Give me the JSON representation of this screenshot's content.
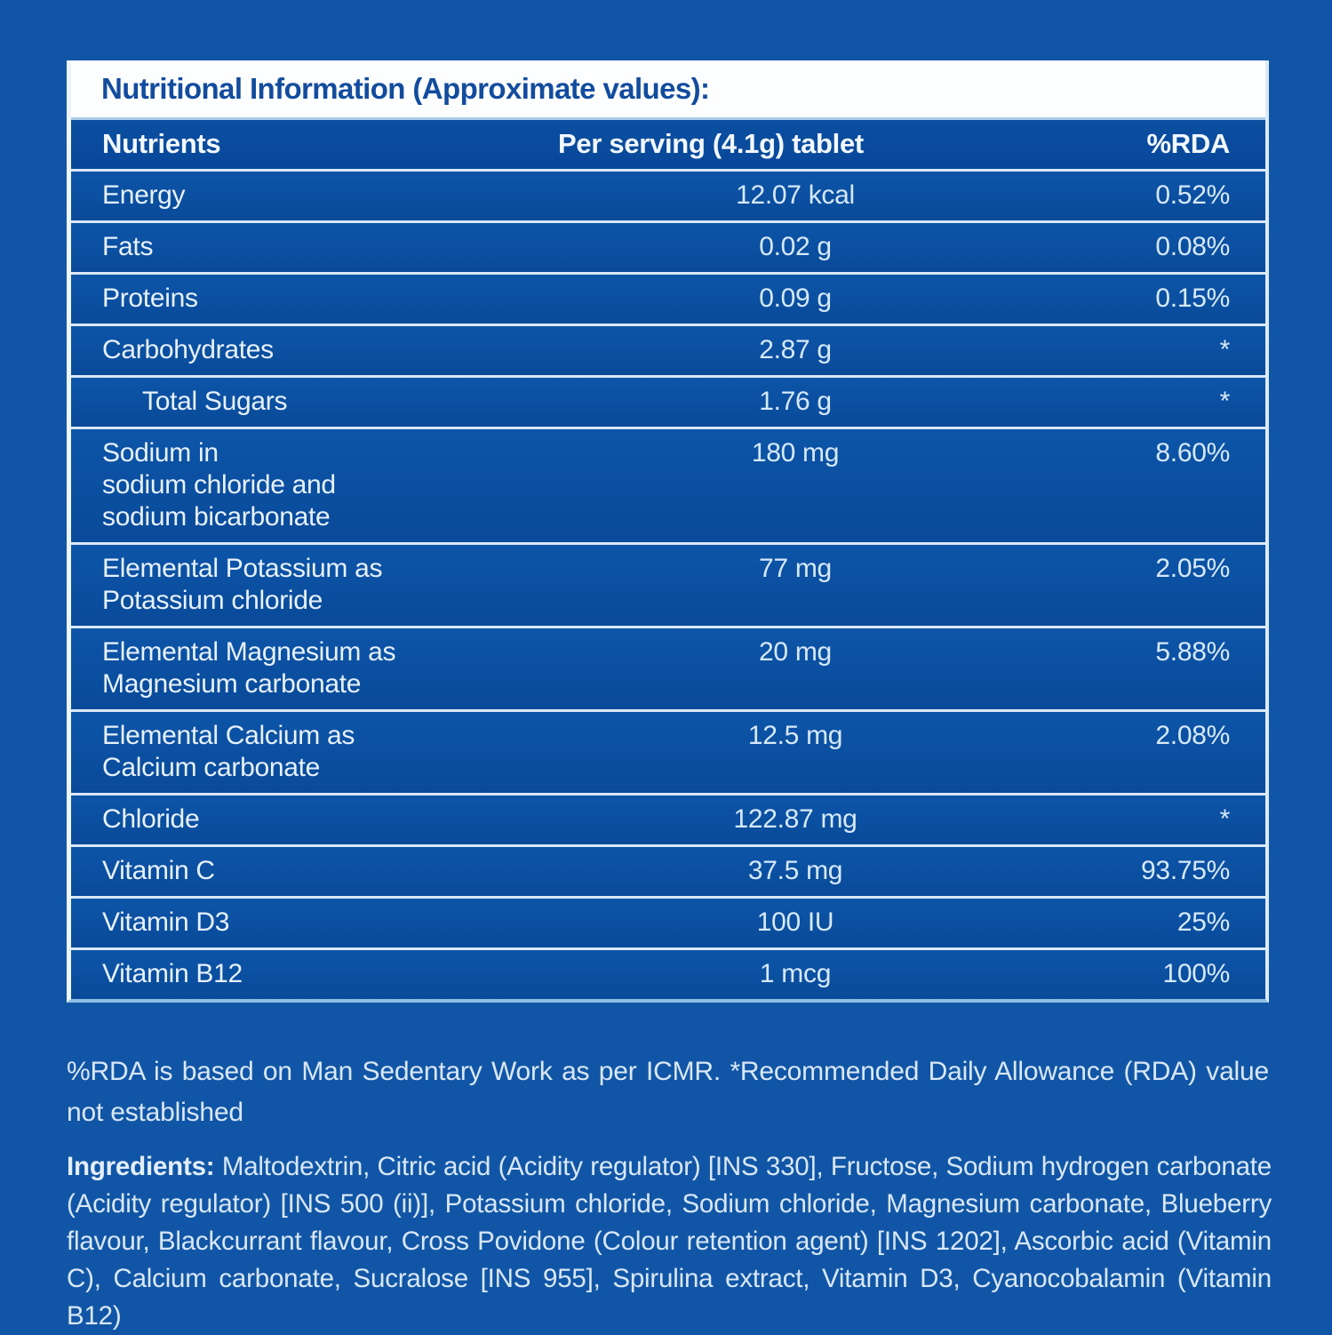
{
  "header": {
    "title": "Nutritional Information (Approximate values):"
  },
  "table": {
    "columns": [
      "Nutrients",
      "Per serving (4.1g) tablet",
      "%RDA"
    ],
    "rows": [
      {
        "nutrient": "Energy",
        "value": "12.07 kcal",
        "rda": "0.52%",
        "indent": false
      },
      {
        "nutrient": "Fats",
        "value": "0.02 g",
        "rda": "0.08%",
        "indent": false
      },
      {
        "nutrient": "Proteins",
        "value": "0.09 g",
        "rda": "0.15%",
        "indent": false
      },
      {
        "nutrient": "Carbohydrates",
        "value": "2.87 g",
        "rda": "*",
        "indent": false
      },
      {
        "nutrient": "Total Sugars",
        "value": "1.76 g",
        "rda": "*",
        "indent": true
      },
      {
        "nutrient": "Sodium in\nsodium chloride and\nsodium bicarbonate",
        "value": "180 mg",
        "rda": "8.60%",
        "indent": false
      },
      {
        "nutrient": "Elemental Potassium as\nPotassium chloride",
        "value": "77 mg",
        "rda": "2.05%",
        "indent": false
      },
      {
        "nutrient": "Elemental Magnesium as\nMagnesium carbonate",
        "value": "20 mg",
        "rda": "5.88%",
        "indent": false
      },
      {
        "nutrient": "Elemental Calcium as\nCalcium carbonate",
        "value": "12.5 mg",
        "rda": "2.08%",
        "indent": false
      },
      {
        "nutrient": "Chloride",
        "value": "122.87 mg",
        "rda": "*",
        "indent": false
      },
      {
        "nutrient": "Vitamin C",
        "value": "37.5 mg",
        "rda": "93.75%",
        "indent": false
      },
      {
        "nutrient": "Vitamin D3",
        "value": "100 IU",
        "rda": "25%",
        "indent": false
      },
      {
        "nutrient": "Vitamin B12",
        "value": "1 mcg",
        "rda": "100%",
        "indent": false
      }
    ]
  },
  "footnote": "%RDA is based on Man Sedentary Work as per ICMR. *Recommended Daily Allowance (RDA) value not established",
  "ingredients": {
    "label": "Ingredients:",
    "text": " Maltodextrin, Citric acid (Acidity regulator) [INS 330], Fructose, Sodium hydrogen carbonate (Acidity regulator) [INS 500 (ii)], Potassium chloride, Sodium chloride, Magnesium carbonate, Blueberry flavour, Blackcurrant flavour, Cross Povidone (Colour retention agent) [INS 1202], Ascorbic acid (Vitamin C), Calcium carbonate, Sucralose [INS 955], Spirulina extract, Vitamin D3, Cyanocobalamin (Vitamin B12)"
  },
  "colors": {
    "page_background": "#1156a6",
    "row_background": "#0a4e9f",
    "title_text": "#124c9e",
    "table_text": "#e7f1fc",
    "separator": "#d9e8f6"
  }
}
